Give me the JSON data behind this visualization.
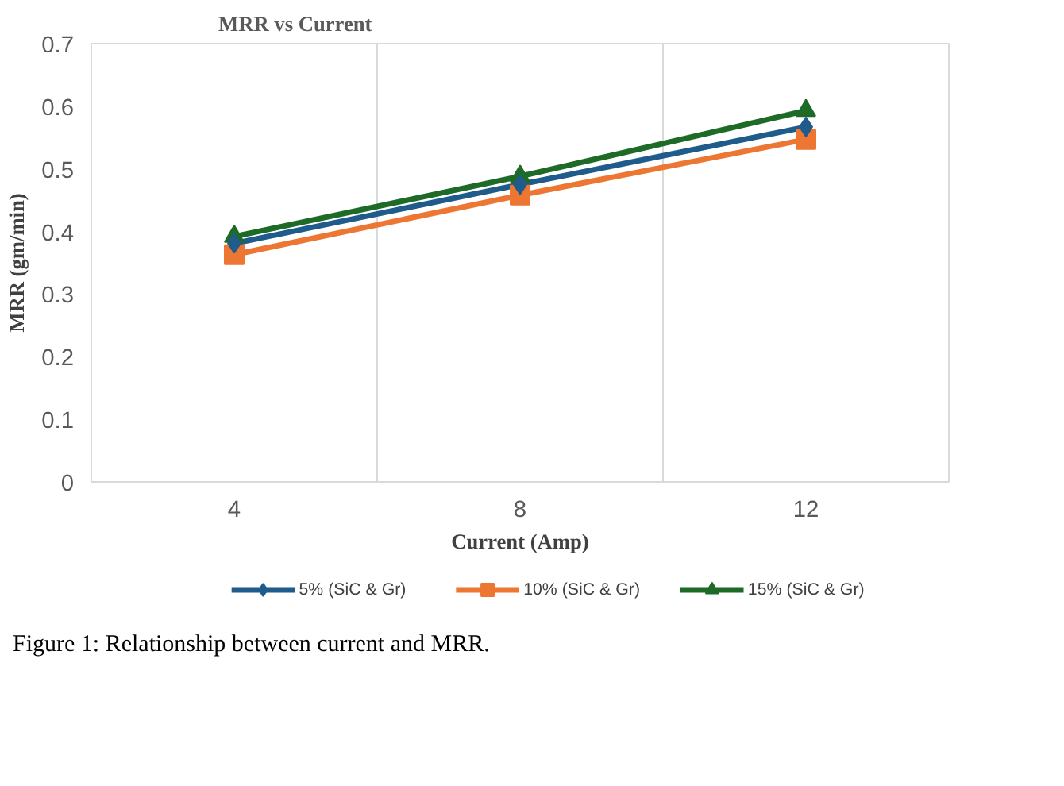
{
  "chart_data": {
    "type": "line",
    "title": "MRR vs Current",
    "xlabel": "Current (Amp)",
    "ylabel": "MRR (gm/min)",
    "categories": [
      "4",
      "8",
      "12"
    ],
    "series": [
      {
        "name": "5% (SiC & Gr)",
        "color": "#1f5c8b",
        "marker": "diamond",
        "values": [
          0.381,
          0.475,
          0.567
        ]
      },
      {
        "name": "10% (SiC & Gr)",
        "color": "#ed7632",
        "marker": "square",
        "values": [
          0.363,
          0.458,
          0.547
        ]
      },
      {
        "name": "15% (SiC & Gr)",
        "color": "#1d6b27",
        "marker": "triangle",
        "values": [
          0.392,
          0.488,
          0.593
        ]
      }
    ],
    "ylim": [
      0,
      0.7
    ],
    "yticks": [
      0,
      0.1,
      0.2,
      0.3,
      0.4,
      0.5,
      0.6,
      0.7
    ],
    "grid": "x",
    "legend": "bottom",
    "line_style": "solid",
    "annotations": [
      "Figure 1: Relationship between current and MRR."
    ]
  }
}
